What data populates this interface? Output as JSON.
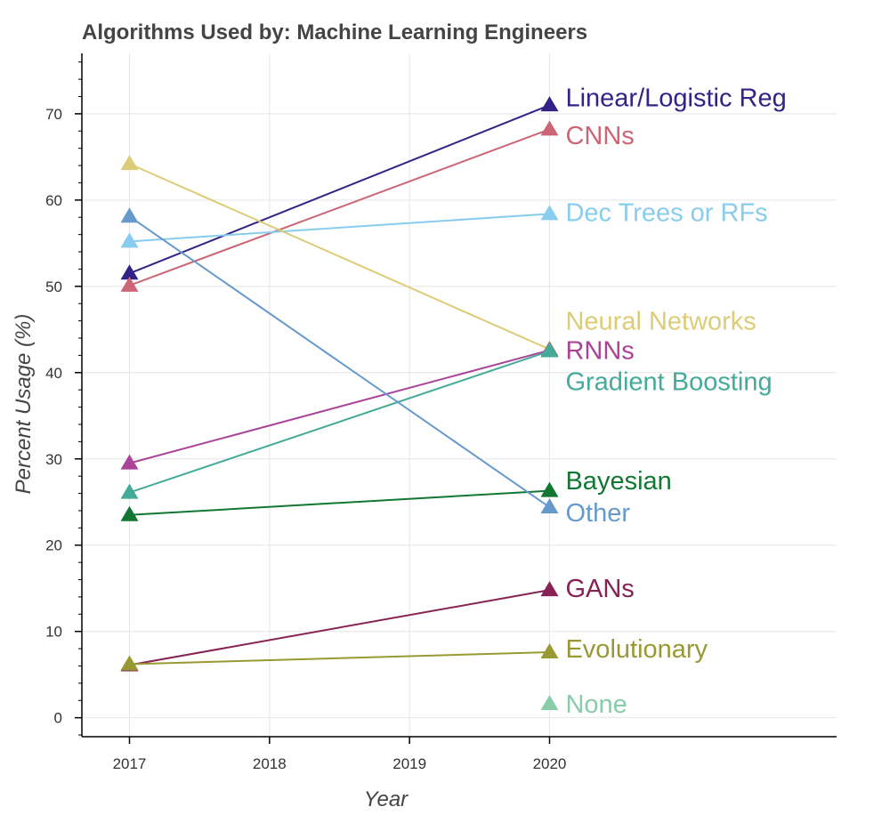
{
  "chart_data": {
    "type": "line",
    "title": "Algorithms Used by: Machine Learning Engineers",
    "xlabel": "Year",
    "ylabel": "Percent Usage (%)",
    "x_ticks": [
      "2017",
      "2018",
      "2019",
      "2020"
    ],
    "y_ticks": [
      "0",
      "10",
      "20",
      "30",
      "40",
      "50",
      "60",
      "70"
    ],
    "xlim": [
      2016.66,
      2022.05
    ],
    "ylim": [
      -2.2,
      77
    ],
    "grid": true,
    "legend": "none",
    "marker": "triangle",
    "series": [
      {
        "name": "Linear/Logistic Reg",
        "color": "#332288",
        "x": [
          2017,
          2020
        ],
        "y": [
          51.5,
          71.0
        ]
      },
      {
        "name": "CNNs",
        "color": "#CC6677",
        "x": [
          2017,
          2020
        ],
        "y": [
          50.1,
          68.2
        ]
      },
      {
        "name": "Dec Trees or RFs",
        "color": "#88CCEE",
        "x": [
          2017,
          2020
        ],
        "y": [
          55.2,
          58.4
        ]
      },
      {
        "name": "Neural Networks",
        "color": "#DDCC77",
        "x": [
          2017,
          2020
        ],
        "y": [
          64.2,
          42.7
        ]
      },
      {
        "name": "RNNs",
        "color": "#AA4499",
        "x": [
          2017,
          2020
        ],
        "y": [
          29.5,
          42.6
        ]
      },
      {
        "name": "Gradient Boosting",
        "color": "#44AA99",
        "x": [
          2017,
          2020
        ],
        "y": [
          26.1,
          42.5
        ]
      },
      {
        "name": "Bayesian",
        "color": "#117733",
        "x": [
          2017,
          2020
        ],
        "y": [
          23.5,
          26.3
        ]
      },
      {
        "name": "Other",
        "color": "#6699CC",
        "x": [
          2017,
          2020
        ],
        "y": [
          58.1,
          24.4
        ]
      },
      {
        "name": "GANs",
        "color": "#882255",
        "x": [
          2017,
          2020
        ],
        "y": [
          6.1,
          14.8
        ]
      },
      {
        "name": "Evolutionary",
        "color": "#999933",
        "x": [
          2017,
          2020
        ],
        "y": [
          6.2,
          7.6
        ]
      },
      {
        "name": "None",
        "color": "#88CCAA",
        "x": [
          2020
        ],
        "y": [
          1.6
        ]
      }
    ],
    "end_labels": [
      {
        "series": "Linear/Logistic Reg",
        "y": 71.9
      },
      {
        "series": "CNNs",
        "y": 67.5
      },
      {
        "series": "Dec Trees or RFs",
        "y": 58.6
      },
      {
        "series": "Neural Networks",
        "y": 46.0
      },
      {
        "series": "RNNs",
        "y": 42.6
      },
      {
        "series": "Gradient Boosting",
        "y": 39.0
      },
      {
        "series": "Bayesian",
        "y": 27.5
      },
      {
        "series": "Other",
        "y": 23.8
      },
      {
        "series": "GANs",
        "y": 15.0
      },
      {
        "series": "Evolutionary",
        "y": 8.0
      },
      {
        "series": "None",
        "y": 1.6
      }
    ]
  }
}
